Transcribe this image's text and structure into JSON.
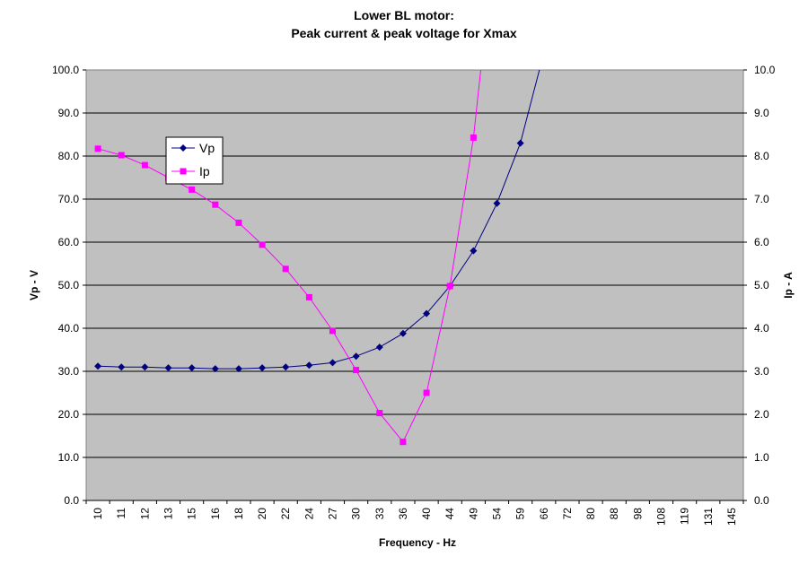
{
  "chart_data": {
    "type": "line",
    "title": [
      "Lower BL motor:",
      "Peak current & peak voltage for Xmax"
    ],
    "xlabel": "Frequency - Hz",
    "ylabel": "Vp - V",
    "y2label": "Ip - A",
    "categories": [
      "10",
      "11",
      "12",
      "13",
      "15",
      "16",
      "18",
      "20",
      "22",
      "24",
      "27",
      "30",
      "33",
      "36",
      "40",
      "44",
      "49",
      "54",
      "59",
      "66",
      "72",
      "80",
      "88",
      "98",
      "108",
      "119",
      "131",
      "145"
    ],
    "yticks": [
      "0.0",
      "10.0",
      "20.0",
      "30.0",
      "40.0",
      "50.0",
      "60.0",
      "70.0",
      "80.0",
      "90.0",
      "100.0"
    ],
    "y2ticks": [
      "0.0",
      "1.0",
      "2.0",
      "3.0",
      "4.0",
      "5.0",
      "6.0",
      "7.0",
      "8.0",
      "9.0",
      "10.0"
    ],
    "ylim": [
      0,
      100
    ],
    "y2lim": [
      0,
      10
    ],
    "grid": true,
    "legend_position": "top-left",
    "series": [
      {
        "name": "Vp",
        "axis": "left",
        "color": "#000080",
        "marker": "diamond",
        "values": [
          31.2,
          31.0,
          31.0,
          30.8,
          30.8,
          30.6,
          30.6,
          30.8,
          31.0,
          31.4,
          32.0,
          33.5,
          35.6,
          38.8,
          43.4,
          49.8,
          58.0,
          69.0,
          83.0,
          104.0,
          null,
          null,
          null,
          null,
          null,
          null,
          null,
          null
        ]
      },
      {
        "name": "Ip",
        "axis": "right",
        "color": "#FF00FF",
        "marker": "square",
        "values": [
          8.17,
          8.02,
          7.79,
          7.5,
          7.22,
          6.87,
          6.45,
          5.94,
          5.38,
          4.72,
          3.94,
          3.03,
          2.03,
          1.36,
          2.5,
          4.98,
          8.43,
          13.5,
          null,
          null,
          null,
          null,
          null,
          null,
          null,
          null,
          null,
          null
        ]
      }
    ]
  },
  "colors": {
    "plot_background": "#C0C0C0",
    "gridline": "#000000"
  }
}
